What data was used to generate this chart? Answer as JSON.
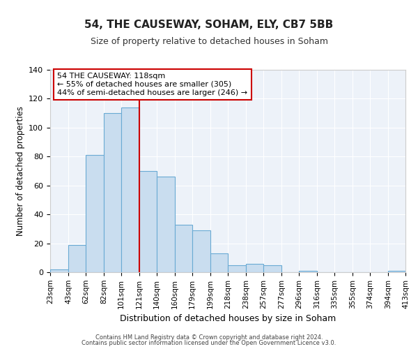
{
  "title": "54, THE CAUSEWAY, SOHAM, ELY, CB7 5BB",
  "subtitle": "Size of property relative to detached houses in Soham",
  "xlabel": "Distribution of detached houses by size in Soham",
  "ylabel": "Number of detached properties",
  "bar_color": "#c9ddef",
  "bar_edge_color": "#6aaad4",
  "bin_labels": [
    "23sqm",
    "43sqm",
    "62sqm",
    "82sqm",
    "101sqm",
    "121sqm",
    "140sqm",
    "160sqm",
    "179sqm",
    "199sqm",
    "218sqm",
    "238sqm",
    "257sqm",
    "277sqm",
    "296sqm",
    "316sqm",
    "335sqm",
    "355sqm",
    "374sqm",
    "394sqm",
    "413sqm"
  ],
  "bin_edges": [
    23,
    43,
    62,
    82,
    101,
    121,
    140,
    160,
    179,
    199,
    218,
    238,
    257,
    277,
    296,
    316,
    335,
    355,
    374,
    394,
    413
  ],
  "bar_heights": [
    2,
    19,
    81,
    110,
    114,
    70,
    66,
    33,
    29,
    13,
    5,
    6,
    5,
    0,
    1,
    0,
    0,
    0,
    0,
    1
  ],
  "ylim": [
    0,
    140
  ],
  "yticks": [
    0,
    20,
    40,
    60,
    80,
    100,
    120,
    140
  ],
  "vline_x": 121,
  "vline_color": "#cc0000",
  "annotation_title": "54 THE CAUSEWAY: 118sqm",
  "annotation_line1": "← 55% of detached houses are smaller (305)",
  "annotation_line2": "44% of semi-detached houses are larger (246) →",
  "annotation_box_color": "#ffffff",
  "annotation_box_edge": "#cc0000",
  "footer1": "Contains HM Land Registry data © Crown copyright and database right 2024.",
  "footer2": "Contains public sector information licensed under the Open Government Licence v3.0.",
  "background_color": "#edf2f9",
  "grid_color": "#ffffff"
}
